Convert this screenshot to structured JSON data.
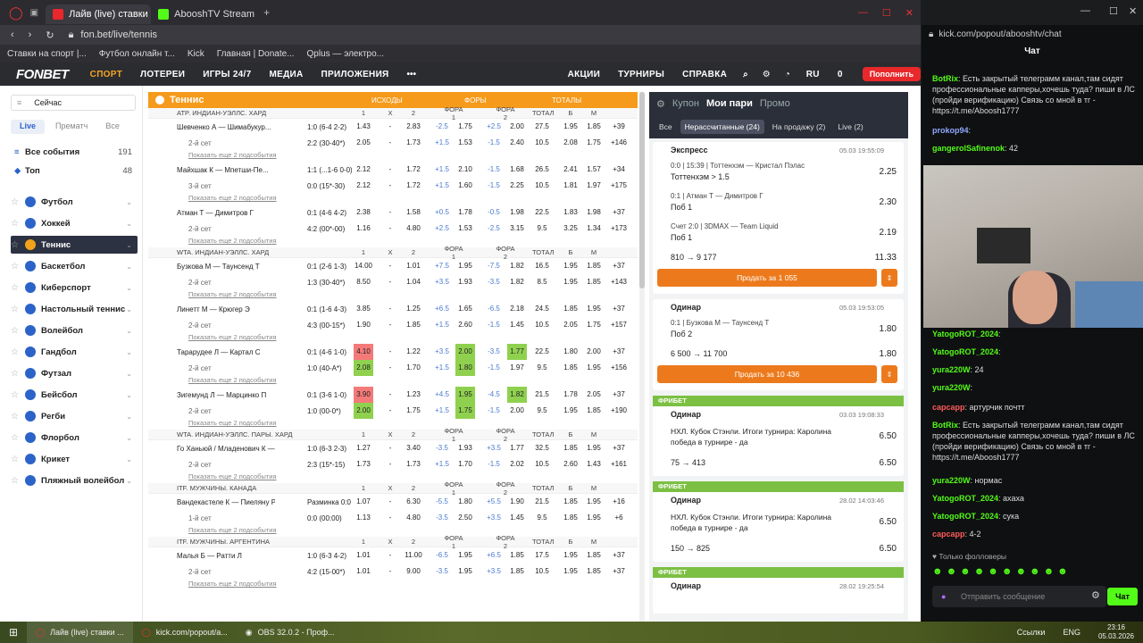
{
  "browser": {
    "tabs": [
      "Лайв (live) ставки на Тен...",
      "AbooshTV Stream - Watch"
    ],
    "url": "fon.bet/live/tennis",
    "bookmarks": [
      "Ставки на спорт |...",
      "Футбол онлайн т...",
      "Kick",
      "Главная | Donate...",
      "Qplus — электро..."
    ]
  },
  "header": {
    "logo": "FONBET",
    "nav": [
      "СПОРТ",
      "ЛОТЕРЕИ",
      "ИГРЫ 24/7",
      "МЕДИА",
      "ПРИЛОЖЕНИЯ"
    ],
    "right": [
      "АКЦИИ",
      "ТУРНИРЫ",
      "СПРАВКА",
      "RU",
      "0"
    ],
    "topup": "Пополнить"
  },
  "sidebar": {
    "now": "Сейчас",
    "filters": [
      "Live",
      "Прематч",
      "Все"
    ],
    "all_events": "Все события",
    "all_count": "191",
    "top": "Топ",
    "top_count": "48",
    "sports": [
      {
        "label": "Футбол",
        "color": "#2b63c9"
      },
      {
        "label": "Хоккей",
        "color": "#2b63c9"
      },
      {
        "label": "Теннис",
        "color": "#f2a21b"
      },
      {
        "label": "Баскетбол",
        "color": "#2b63c9"
      },
      {
        "label": "Киберспорт",
        "color": "#2b63c9"
      },
      {
        "label": "Настольный теннис",
        "color": "#2b63c9"
      },
      {
        "label": "Волейбол",
        "color": "#2b63c9"
      },
      {
        "label": "Гандбол",
        "color": "#2b63c9"
      },
      {
        "label": "Футзал",
        "color": "#2b63c9"
      },
      {
        "label": "Бейсбол",
        "color": "#2b63c9"
      },
      {
        "label": "Регби",
        "color": "#2b63c9"
      },
      {
        "label": "Флорбол",
        "color": "#2b63c9"
      },
      {
        "label": "Крикет",
        "color": "#2b63c9"
      },
      {
        "label": "Пляжный волейбол",
        "color": "#2b63c9"
      }
    ]
  },
  "main": {
    "sport": "Теннис",
    "col_heads": [
      "ИСХОДЫ",
      "ФОРЫ",
      "ТОТАЛЫ"
    ],
    "sub_heads": [
      "1",
      "X",
      "2",
      "ФОРА 1",
      "ФОРА 2",
      "ТОТАЛ",
      "Б",
      "М"
    ],
    "more": "Показать еще 2 подсобытия",
    "leagues": [
      {
        "name": "ATP. ИНДИАН-УЭЛЛС. ХАРД",
        "matches": [
          {
            "name": "Шевченко А — Шимабукур...",
            "score": "1:0 (6-4 2-2)",
            "c": [
              "1.43",
              "-",
              "2.83",
              "-2.5",
              "1.75",
              "+2.5",
              "2.00",
              "27.5",
              "1.95",
              "1.85",
              "+39"
            ],
            "set": "2-й сет",
            "sscore": "2:2 (30-40*)",
            "s": [
              "2.05",
              "-",
              "1.73",
              "+1.5",
              "1.53",
              "-1.5",
              "2.40",
              "10.5",
              "2.08",
              "1.75",
              "+146"
            ]
          },
          {
            "name": "Майхшак К — Мпетши-Пе...",
            "score": "1:1 (...1-6 0-0)",
            "c": [
              "2.12",
              "-",
              "1.72",
              "+1.5",
              "2.10",
              "-1.5",
              "1.68",
              "26.5",
              "2.41",
              "1.57",
              "+34"
            ],
            "set": "3-й сет",
            "sscore": "0:0 (15*-30)",
            "s": [
              "2.12",
              "-",
              "1.72",
              "+1.5",
              "1.60",
              "-1.5",
              "2.25",
              "10.5",
              "1.81",
              "1.97",
              "+175"
            ]
          },
          {
            "name": "Атман Т — Димитров Г",
            "score": "0:1 (4-6 4-2)",
            "c": [
              "2.38",
              "-",
              "1.58",
              "+0.5",
              "1.78",
              "-0.5",
              "1.98",
              "22.5",
              "1.83",
              "1.98",
              "+37"
            ],
            "set": "2-й сет",
            "sscore": "4:2 (00*-00)",
            "s": [
              "1.16",
              "-",
              "4.80",
              "+2.5",
              "1.53",
              "-2.5",
              "3.15",
              "9.5",
              "3.25",
              "1.34",
              "+173"
            ]
          }
        ]
      },
      {
        "name": "WTA. ИНДИАН-УЭЛЛС. ХАРД",
        "matches": [
          {
            "name": "Бузкова М — Таунсенд Т",
            "score": "0:1 (2-6 1-3)",
            "c": [
              "14.00",
              "-",
              "1.01",
              "+7.5",
              "1.95",
              "-7.5",
              "1.82",
              "16.5",
              "1.95",
              "1.85",
              "+37"
            ],
            "set": "2-й сет",
            "sscore": "1:3 (30-40*)",
            "s": [
              "8.50",
              "-",
              "1.04",
              "+3.5",
              "1.93",
              "-3.5",
              "1.82",
              "8.5",
              "1.95",
              "1.85",
              "+143"
            ]
          },
          {
            "name": "Линетт М — Крюгер Э",
            "score": "0:1 (1-6 4-3)",
            "c": [
              "3.85",
              "-",
              "1.25",
              "+6.5",
              "1.65",
              "-6.5",
              "2.18",
              "24.5",
              "1.85",
              "1.95",
              "+37"
            ],
            "set": "2-й сет",
            "sscore": "4:3 (00-15*)",
            "s": [
              "1.90",
              "-",
              "1.85",
              "+1.5",
              "2.60",
              "-1.5",
              "1.45",
              "10.5",
              "2.05",
              "1.75",
              "+157"
            ]
          },
          {
            "name": "Тарарудее Л — Картал С",
            "score": "0:1 (4-6 1-0)",
            "c": [
              "4.10",
              "-",
              "1.22",
              "+3.5",
              "2.00",
              "-3.5",
              "1.77",
              "22.5",
              "1.80",
              "2.00",
              "+37"
            ],
            "set": "2-й сет",
            "sscore": "1:0 (40-А*)",
            "s": [
              "2.08",
              "-",
              "1.70",
              "+1.5",
              "1.80",
              "-1.5",
              "1.97",
              "9.5",
              "1.85",
              "1.95",
              "+156"
            ]
          },
          {
            "name": "Зигемунд Л — Марцинко П",
            "score": "0:1 (3-6 1-0)",
            "c": [
              "3.90",
              "-",
              "1.23",
              "+4.5",
              "1.95",
              "-4.5",
              "1.82",
              "21.5",
              "1.78",
              "2.05",
              "+37"
            ],
            "set": "2-й сет",
            "sscore": "1:0 (00-0*)",
            "s": [
              "2.00",
              "-",
              "1.75",
              "+1.5",
              "1.75",
              "-1.5",
              "2.00",
              "9.5",
              "1.95",
              "1.85",
              "+190"
            ]
          }
        ]
      },
      {
        "name": "WTA. ИНДИАН-УЭЛЛС. ПАРЫ. ХАРД",
        "matches": [
          {
            "name": "Го Ханьюй / Младенович К — ...",
            "score": "1:0 (6-3 2-3)",
            "c": [
              "1.27",
              "-",
              "3.40",
              "-3.5",
              "1.93",
              "+3.5",
              "1.77",
              "32.5",
              "1.85",
              "1.95",
              "+37"
            ],
            "set": "2-й сет",
            "sscore": "2:3 (15*-15)",
            "s": [
              "1.73",
              "-",
              "1.73",
              "+1.5",
              "1.70",
              "-1.5",
              "2.02",
              "10.5",
              "2.60",
              "1.43",
              "+161"
            ]
          }
        ]
      },
      {
        "name": "ITF. МУЖЧИНЫ. КАНАДА",
        "matches": [
          {
            "name": "Вандекастеле К — Пиеляну Р-Т",
            "score": "Разминка 0:0",
            "c": [
              "1.07",
              "-",
              "6.30",
              "-5.5",
              "1.80",
              "+5.5",
              "1.90",
              "21.5",
              "1.85",
              "1.95",
              "+16"
            ],
            "set": "1-й сет",
            "sscore": "0:0 (00:00)",
            "s": [
              "1.13",
              "-",
              "4.80",
              "-3.5",
              "2.50",
              "+3.5",
              "1.45",
              "9.5",
              "1.85",
              "1.95",
              "+6"
            ]
          }
        ]
      },
      {
        "name": "ITF. МУЖЧИНЫ. АРГЕНТИНА",
        "matches": [
          {
            "name": "Малья Б — Ратти Л",
            "score": "1:0 (6-3 4-2)",
            "c": [
              "1.01",
              "-",
              "11.00",
              "-6.5",
              "1.95",
              "+6.5",
              "1.85",
              "17.5",
              "1.95",
              "1.85",
              "+37"
            ],
            "set": "2-й сет",
            "sscore": "4:2 (15-00*)",
            "s": [
              "1.01",
              "-",
              "9.00",
              "-3.5",
              "1.95",
              "+3.5",
              "1.85",
              "10.5",
              "1.95",
              "1.85",
              "+37"
            ]
          }
        ]
      }
    ]
  },
  "coupon": {
    "tabs": [
      "Купон",
      "Мои пари",
      "Промо"
    ],
    "filters": [
      "Все",
      "Нерассчитанные (24)",
      "На продажу (2)",
      "Live (2)"
    ],
    "bets": [
      {
        "type": "Экспресс",
        "time": "05.03  19:55:09",
        "sels": [
          {
            "line": "0:0 | 15:39 | Тоттенхэм — Кристал Пэлас",
            "bet": "Тоттенхэм > 1.5",
            "odd": "2.25"
          },
          {
            "line": "0:1 | Атман Т — Димитров Г",
            "bet": "Поб 1",
            "odd": "2.30"
          },
          {
            "line": "Счет 2:0 | 3DMAX — Team Liquid",
            "bet": "Поб 1",
            "odd": "2.19"
          }
        ],
        "sum": "810 → 9 177",
        "total": "11.33",
        "sell": "Продать за 1 055"
      },
      {
        "type": "Одинар",
        "time": "05.03  19:53:05",
        "sels": [
          {
            "line": "0:1 | Бузкова М — Таунсенд Т",
            "bet": "Поб 2",
            "odd": "1.80"
          }
        ],
        "sum": "6 500 → 11 700",
        "total": "1.80",
        "sell": "Продать за 10 436"
      },
      {
        "type": "Одинар",
        "time": "03.03  19:08:33",
        "freebet": "ФРИБЕТ",
        "desc": "НХЛ. Кубок Стэнли. Итоги турнира: Каролина победа в турнире - да",
        "sum": "75 → 413",
        "total": "6.50"
      },
      {
        "type": "Одинар",
        "time": "28.02  14:03:46",
        "freebet": "ФРИБЕТ",
        "desc": "НХЛ. Кубок Стэнли. Итоги турнира: Каролина победа в турнире - да",
        "sum": "150 → 825",
        "total": "6.50"
      },
      {
        "type": "Одинар",
        "time": "28.02  19:25:54",
        "freebet": "ФРИБЕТ"
      }
    ]
  },
  "kick": {
    "url": "kick.com/popout/abooshtv/chat",
    "title": "Чат",
    "messages": [
      {
        "user": "BotRix",
        "color": "#53fc18",
        "text": "Есть закрытый телеграмм канал,там сидят профессиональные капперы,хочешь туда? пиши в ЛС (пройди верификацию) Связь со мной в тг - https://t.me/Aboosh1777"
      },
      {
        "user": "prokop94",
        "color": "#8fa7ff",
        "text": ""
      },
      {
        "user": "gangerolSafinenok",
        "color": "#53fc18",
        "text": "42"
      },
      {
        "user": "YatogoROT_2024",
        "color": "#53fc18",
        "text": ""
      },
      {
        "user": "YatogoROT_2024",
        "color": "#53fc18",
        "text": ""
      },
      {
        "user": "yura220W",
        "color": "#53fc18",
        "text": "24"
      },
      {
        "user": "yura220W",
        "color": "#53fc18",
        "text": ""
      },
      {
        "user": "capcapp",
        "color": "#ff5b5b",
        "text": "артурчик почтт"
      },
      {
        "user": "BotRix",
        "color": "#53fc18",
        "text": "Есть закрытый телеграмм канал,там сидят профессиональные капперы,хочешь туда? пиши в ЛС (пройди верификацию) Связь со мной в тг - https://t.me/Aboosh1777"
      },
      {
        "user": "yura220W",
        "color": "#53fc18",
        "text": "нормас"
      },
      {
        "user": "YatogoROT_2024",
        "color": "#53fc18",
        "text": "ахаха"
      },
      {
        "user": "YatogoROT_2024",
        "color": "#53fc18",
        "text": "сука"
      },
      {
        "user": "capcapp",
        "color": "#ff5b5b",
        "text": "4-2"
      }
    ],
    "followers_only": "Только фолловеры",
    "input_placeholder": "Отправить сообщение",
    "chat_button": "Чат"
  },
  "taskbar": {
    "items": [
      "Лайв (live) ставки ...",
      "kick.com/popout/a...",
      "OBS 32.0.2 - Проф..."
    ],
    "tray": [
      "Ссылки",
      "ENG"
    ],
    "time": "23:16",
    "date": "05.03.2026"
  }
}
